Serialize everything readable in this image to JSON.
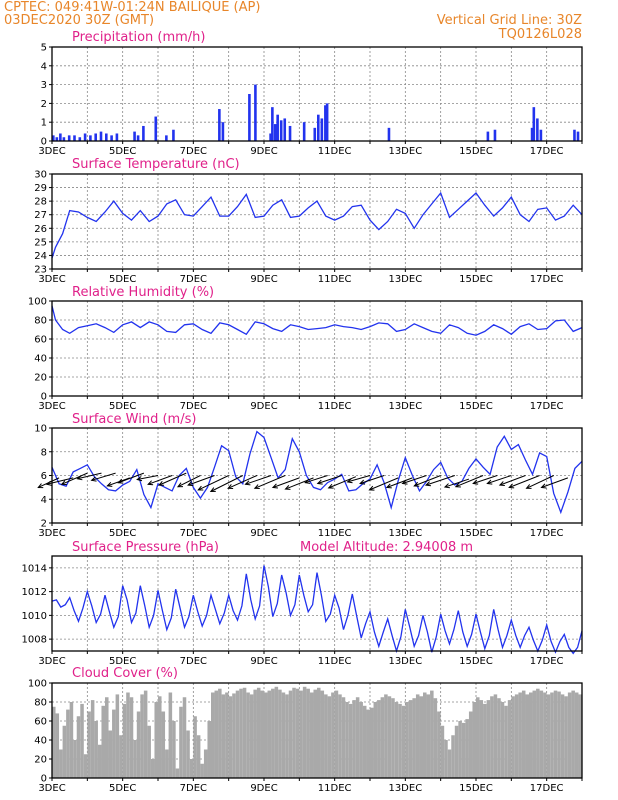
{
  "header": {
    "station": "CPTEC:   049:41W-01:24N   BAILIQUE (AP)",
    "date": "03DEC2020 30Z (GMT)",
    "grid_note": "Vertical Grid Line: 30Z",
    "run_id": "TQ0126L028"
  },
  "colors": {
    "header": "#e8862a",
    "title": "#e0218a",
    "series": "#2233ee",
    "cloud": "#a9a9a9"
  },
  "xaxis": {
    "start_day": 3,
    "end_day": 18,
    "labels": [
      "3DEC",
      "5DEC",
      "7DEC",
      "9DEC",
      "11DEC",
      "13DEC",
      "15DEC",
      "17DEC"
    ],
    "label_days": [
      3,
      5,
      7,
      9,
      11,
      13,
      15,
      17
    ]
  },
  "chart_data": [
    {
      "id": "precip",
      "type": "bar",
      "title": "Precipitation (mm/h)",
      "ylim": [
        0,
        5
      ],
      "yticks": [
        0,
        1,
        2,
        3,
        4,
        5
      ],
      "x_days": [
        3.0,
        3.1,
        3.2,
        3.3,
        3.45,
        3.6,
        3.75,
        3.9,
        4.05,
        4.2,
        4.35,
        4.5,
        4.65,
        4.8,
        5.3,
        5.4,
        5.55,
        5.9,
        6.2,
        6.4,
        7.7,
        7.8,
        8.55,
        8.72,
        9.15,
        9.2,
        9.28,
        9.35,
        9.45,
        9.55,
        9.7,
        10.1,
        10.4,
        10.5,
        10.6,
        10.7,
        10.75,
        12.5,
        15.3,
        15.5,
        16.55,
        16.6,
        16.7,
        16.8,
        17.75,
        17.85
      ],
      "values": [
        0.3,
        0.2,
        0.4,
        0.2,
        0.3,
        0.3,
        0.2,
        0.4,
        0.3,
        0.4,
        0.5,
        0.4,
        0.3,
        0.4,
        0.5,
        0.3,
        0.8,
        1.3,
        0.3,
        0.6,
        1.7,
        1.0,
        2.5,
        3.0,
        0.4,
        1.8,
        0.9,
        1.4,
        1.1,
        1.2,
        0.8,
        1.0,
        0.7,
        1.4,
        1.2,
        1.9,
        2.0,
        0.7,
        0.5,
        0.6,
        0.7,
        1.8,
        1.2,
        0.6,
        0.6,
        0.5
      ]
    },
    {
      "id": "temp",
      "type": "line",
      "title": "Surface Temperature (nC)",
      "ylim": [
        23,
        30
      ],
      "yticks": [
        23,
        24,
        25,
        26,
        27,
        28,
        29,
        30
      ],
      "x_days": [
        3.0,
        3.1,
        3.3,
        3.5,
        3.75,
        4.0,
        4.25,
        4.5,
        4.75,
        5.0,
        5.25,
        5.5,
        5.75,
        6.0,
        6.25,
        6.5,
        6.75,
        7.0,
        7.25,
        7.5,
        7.75,
        8.0,
        8.25,
        8.5,
        8.75,
        9.0,
        9.25,
        9.5,
        9.75,
        10.0,
        10.25,
        10.5,
        10.75,
        11.0,
        11.25,
        11.5,
        11.75,
        12.0,
        12.25,
        12.5,
        12.75,
        13.0,
        13.25,
        13.5,
        13.75,
        14.0,
        14.25,
        14.5,
        14.75,
        15.0,
        15.25,
        15.5,
        15.75,
        16.0,
        16.25,
        16.5,
        16.75,
        17.0,
        17.25,
        17.5,
        17.75,
        18.0
      ],
      "values": [
        23.8,
        24.6,
        25.6,
        27.3,
        27.2,
        26.8,
        26.5,
        27.2,
        28.0,
        27.1,
        26.6,
        27.3,
        26.5,
        26.9,
        27.8,
        28.1,
        27.0,
        26.9,
        27.6,
        28.3,
        26.9,
        26.9,
        27.6,
        28.5,
        26.8,
        26.9,
        27.7,
        28.1,
        26.8,
        26.9,
        27.5,
        28.0,
        26.9,
        26.6,
        26.9,
        27.6,
        27.7,
        26.6,
        25.9,
        26.5,
        27.4,
        27.1,
        26.0,
        27.0,
        27.8,
        28.6,
        26.8,
        27.4,
        28.0,
        28.6,
        27.7,
        26.9,
        27.5,
        28.3,
        27.0,
        26.5,
        27.4,
        27.5,
        26.6,
        26.9,
        27.7,
        27.0
      ]
    },
    {
      "id": "rh",
      "type": "line",
      "title": "Relative Humidity (%)",
      "ylim": [
        0,
        100
      ],
      "yticks": [
        0,
        20,
        40,
        60,
        80,
        100
      ],
      "x_days": [
        3.0,
        3.1,
        3.3,
        3.5,
        3.75,
        4.0,
        4.25,
        4.5,
        4.75,
        5.0,
        5.25,
        5.5,
        5.75,
        6.0,
        6.25,
        6.5,
        6.75,
        7.0,
        7.25,
        7.5,
        7.75,
        8.0,
        8.25,
        8.5,
        8.75,
        9.0,
        9.25,
        9.5,
        9.75,
        10.0,
        10.25,
        10.5,
        10.75,
        11.0,
        11.25,
        11.5,
        11.75,
        12.0,
        12.25,
        12.5,
        12.75,
        13.0,
        13.25,
        13.5,
        13.75,
        14.0,
        14.25,
        14.5,
        14.75,
        15.0,
        15.25,
        15.5,
        15.75,
        16.0,
        16.25,
        16.5,
        16.75,
        17.0,
        17.25,
        17.5,
        17.75,
        18.0
      ],
      "values": [
        95,
        80,
        70,
        66,
        72,
        74,
        76,
        72,
        67,
        75,
        78,
        72,
        78,
        75,
        68,
        67,
        75,
        76,
        70,
        66,
        77,
        75,
        70,
        65,
        78,
        76,
        71,
        68,
        75,
        73,
        70,
        71,
        72,
        75,
        73,
        72,
        70,
        73,
        77,
        76,
        68,
        70,
        76,
        72,
        68,
        66,
        75,
        72,
        66,
        64,
        68,
        75,
        71,
        65,
        73,
        76,
        70,
        71,
        79,
        80,
        68,
        72
      ]
    },
    {
      "id": "wind",
      "type": "line",
      "title": "Surface Wind (m/s)",
      "ylim": [
        2,
        10
      ],
      "yticks": [
        2,
        4,
        6,
        8,
        10
      ],
      "x_days": [
        3.0,
        3.2,
        3.4,
        3.6,
        3.8,
        4.0,
        4.2,
        4.4,
        4.6,
        4.8,
        5.0,
        5.2,
        5.4,
        5.6,
        5.8,
        6.0,
        6.2,
        6.4,
        6.6,
        6.8,
        7.0,
        7.2,
        7.4,
        7.6,
        7.8,
        8.0,
        8.2,
        8.4,
        8.6,
        8.8,
        9.0,
        9.2,
        9.4,
        9.6,
        9.8,
        10.0,
        10.2,
        10.4,
        10.6,
        10.8,
        11.0,
        11.2,
        11.4,
        11.6,
        11.8,
        12.0,
        12.2,
        12.4,
        12.6,
        12.8,
        13.0,
        13.2,
        13.4,
        13.6,
        13.8,
        14.0,
        14.2,
        14.4,
        14.6,
        14.8,
        15.0,
        15.2,
        15.4,
        15.6,
        15.8,
        16.0,
        16.2,
        16.4,
        16.6,
        16.8,
        17.0,
        17.2,
        17.4,
        17.6,
        17.8,
        18.0
      ],
      "values": [
        6.7,
        5.3,
        5.1,
        6.3,
        6.6,
        6.9,
        5.9,
        5.3,
        4.8,
        4.7,
        5.2,
        5.5,
        6.5,
        4.4,
        3.3,
        5.3,
        5.0,
        4.7,
        6.0,
        6.6,
        5.0,
        4.1,
        5.0,
        6.7,
        8.5,
        8.1,
        5.9,
        5.3,
        7.8,
        9.7,
        9.2,
        7.5,
        5.8,
        6.5,
        9.1,
        8.0,
        6.0,
        5.0,
        4.8,
        5.4,
        5.7,
        6.1,
        4.7,
        4.8,
        5.3,
        5.7,
        6.9,
        5.4,
        3.3,
        5.6,
        7.5,
        6.0,
        4.7,
        5.5,
        6.5,
        7.1,
        5.8,
        5.2,
        5.5,
        6.6,
        7.4,
        6.7,
        6.1,
        8.4,
        9.3,
        8.2,
        8.6,
        7.3,
        6.1,
        7.9,
        7.6,
        4.5,
        2.9,
        4.6,
        6.6,
        7.2
      ],
      "arrows_x_days": [
        3.2,
        3.6,
        4.0,
        4.4,
        4.8,
        5.2,
        5.6,
        6.0,
        6.4,
        6.8,
        7.2,
        7.6,
        8.0,
        8.4,
        8.8,
        9.2,
        9.6,
        10.0,
        10.4,
        10.8,
        11.2,
        11.6,
        12.0,
        12.4,
        12.8,
        13.2,
        13.6,
        14.0,
        14.4,
        14.8,
        15.2,
        15.6,
        16.0,
        16.4,
        16.8,
        17.2,
        17.6
      ],
      "arrows_y": [
        5.8,
        5.8,
        6.2,
        6.2,
        6.2,
        5.8,
        6.2,
        6.0,
        6.0,
        6.2,
        6.0,
        6.0,
        6.0,
        6.0,
        6.0,
        6.0,
        6.0,
        5.8,
        5.8,
        6.0,
        6.0,
        5.9,
        6.0,
        6.0,
        5.8,
        5.8,
        6.0,
        6.0,
        6.0,
        5.7,
        6.0,
        6.0,
        6.0,
        6.0,
        6.0,
        6.0,
        5.8
      ],
      "arrows_u": [
        -2.6,
        -3.3,
        -3.2,
        -3.0,
        -3.0,
        -2.8,
        -3.2,
        -2.6,
        -3.0,
        -3.4,
        -2.8,
        -3.3,
        -3.8,
        -4.0,
        -3.6,
        -3.2,
        -3.8,
        -3.3,
        -3.5,
        -2.8,
        -3.0,
        -3.4,
        -2.8,
        -3.0,
        -3.6,
        -3.2,
        -3.0,
        -3.3,
        -3.6,
        -3.0,
        -3.4,
        -3.0,
        -3.0,
        -3.2,
        -3.8,
        -3.4,
        -3.3
      ],
      "arrows_v": [
        -1.2,
        -0.8,
        -1.4,
        -0.7,
        -0.9,
        -1.0,
        -1.2,
        -0.5,
        -1.1,
        -1.5,
        -1.4,
        -1.2,
        -1.8,
        -2.0,
        -1.6,
        -1.1,
        -1.6,
        -1.2,
        -1.4,
        -0.9,
        -1.0,
        -1.4,
        -0.8,
        -1.0,
        -1.5,
        -1.2,
        -1.0,
        -1.3,
        -1.2,
        -1.0,
        -1.4,
        -1.0,
        -1.0,
        -1.2,
        -1.5,
        -1.6,
        -1.2
      ]
    },
    {
      "id": "pressure",
      "type": "line",
      "title": "Surface Pressure (hPa)",
      "annotation": "Model Altitude: 2.94008 m",
      "ylim": [
        1007,
        1015
      ],
      "yticks": [
        1008,
        1010,
        1012,
        1014
      ],
      "x_days": [
        3.0,
        3.125,
        3.25,
        3.375,
        3.5,
        3.625,
        3.75,
        3.875,
        4.0,
        4.125,
        4.25,
        4.375,
        4.5,
        4.625,
        4.75,
        4.875,
        5.0,
        5.125,
        5.25,
        5.375,
        5.5,
        5.625,
        5.75,
        5.875,
        6.0,
        6.125,
        6.25,
        6.375,
        6.5,
        6.625,
        6.75,
        6.875,
        7.0,
        7.125,
        7.25,
        7.375,
        7.5,
        7.625,
        7.75,
        7.875,
        8.0,
        8.125,
        8.25,
        8.375,
        8.5,
        8.625,
        8.75,
        8.875,
        9.0,
        9.125,
        9.25,
        9.375,
        9.5,
        9.625,
        9.75,
        9.875,
        10.0,
        10.125,
        10.25,
        10.375,
        10.5,
        10.625,
        10.75,
        10.875,
        11.0,
        11.125,
        11.25,
        11.375,
        11.5,
        11.625,
        11.75,
        11.875,
        12.0,
        12.125,
        12.25,
        12.375,
        12.5,
        12.625,
        12.75,
        12.875,
        13.0,
        13.125,
        13.25,
        13.375,
        13.5,
        13.625,
        13.75,
        13.875,
        14.0,
        14.125,
        14.25,
        14.375,
        14.5,
        14.625,
        14.75,
        14.875,
        15.0,
        15.125,
        15.25,
        15.375,
        15.5,
        15.625,
        15.75,
        15.875,
        16.0,
        16.125,
        16.25,
        16.375,
        16.5,
        16.625,
        16.75,
        16.875,
        17.0,
        17.125,
        17.25,
        17.375,
        17.5,
        17.625,
        17.75,
        17.875,
        18.0
      ],
      "values": [
        1011.2,
        1011.3,
        1010.7,
        1010.9,
        1011.5,
        1010.4,
        1009.5,
        1010.6,
        1012.0,
        1010.8,
        1009.4,
        1010.1,
        1011.7,
        1010.3,
        1009.0,
        1009.9,
        1012.5,
        1011.3,
        1009.4,
        1010.2,
        1012.5,
        1010.8,
        1009.0,
        1010.0,
        1012.1,
        1010.4,
        1008.8,
        1009.8,
        1012.2,
        1010.6,
        1009.0,
        1009.9,
        1011.7,
        1010.3,
        1009.1,
        1010.0,
        1011.7,
        1010.5,
        1009.3,
        1010.2,
        1011.7,
        1010.4,
        1009.6,
        1010.8,
        1013.5,
        1011.3,
        1009.7,
        1010.8,
        1014.2,
        1012.4,
        1009.9,
        1011.0,
        1013.4,
        1011.9,
        1010.0,
        1010.9,
        1013.4,
        1011.7,
        1010.3,
        1010.9,
        1013.6,
        1011.7,
        1009.5,
        1010.1,
        1011.7,
        1010.6,
        1008.8,
        1010.0,
        1011.8,
        1009.9,
        1008.1,
        1009.3,
        1010.3,
        1008.6,
        1007.4,
        1008.6,
        1009.7,
        1008.3,
        1007.0,
        1008.2,
        1010.5,
        1009.0,
        1007.4,
        1008.3,
        1010.0,
        1008.6,
        1006.9,
        1008.2,
        1010.1,
        1008.7,
        1007.6,
        1008.8,
        1010.4,
        1008.6,
        1007.4,
        1008.4,
        1010.1,
        1008.6,
        1007.2,
        1008.3,
        1010.5,
        1008.8,
        1007.3,
        1008.3,
        1009.6,
        1008.3,
        1007.3,
        1008.3,
        1009.0,
        1007.9,
        1007.0,
        1007.9,
        1009.2,
        1007.8,
        1006.9,
        1007.8,
        1008.4,
        1007.3,
        1006.8,
        1007.3,
        1008.7
      ]
    },
    {
      "id": "cloud",
      "type": "bar",
      "title": "Cloud Cover (%)",
      "ylim": [
        0,
        100
      ],
      "yticks": [
        0,
        20,
        40,
        60,
        80,
        100
      ],
      "x_days": [
        3.0,
        3.1,
        3.2,
        3.3,
        3.4,
        3.5,
        3.6,
        3.7,
        3.8,
        3.9,
        4.0,
        4.1,
        4.2,
        4.3,
        4.4,
        4.5,
        4.6,
        4.7,
        4.8,
        4.9,
        5.0,
        5.1,
        5.2,
        5.3,
        5.4,
        5.5,
        5.6,
        5.7,
        5.8,
        5.9,
        6.0,
        6.1,
        6.2,
        6.3,
        6.4,
        6.5,
        6.6,
        6.7,
        6.8,
        6.9,
        7.0,
        7.1,
        7.2,
        7.3,
        7.4,
        7.5,
        7.6,
        7.7,
        7.8,
        7.9,
        8.0,
        8.1,
        8.2,
        8.3,
        8.4,
        8.5,
        8.6,
        8.7,
        8.8,
        8.9,
        9.0,
        9.1,
        9.2,
        9.3,
        9.4,
        9.5,
        9.6,
        9.7,
        9.8,
        9.9,
        10.0,
        10.1,
        10.2,
        10.3,
        10.4,
        10.5,
        10.6,
        10.7,
        10.8,
        10.9,
        11.0,
        11.1,
        11.2,
        11.3,
        11.4,
        11.5,
        11.6,
        11.7,
        11.8,
        11.9,
        12.0,
        12.1,
        12.2,
        12.3,
        12.4,
        12.5,
        12.6,
        12.7,
        12.8,
        12.9,
        13.0,
        13.1,
        13.2,
        13.3,
        13.4,
        13.5,
        13.6,
        13.7,
        13.8,
        13.9,
        14.0,
        14.1,
        14.2,
        14.3,
        14.4,
        14.5,
        14.6,
        14.7,
        14.8,
        14.9,
        15.0,
        15.1,
        15.2,
        15.3,
        15.4,
        15.5,
        15.6,
        15.7,
        15.8,
        15.9,
        16.0,
        16.1,
        16.2,
        16.3,
        16.4,
        16.5,
        16.6,
        16.7,
        16.8,
        16.9,
        17.0,
        17.1,
        17.2,
        17.3,
        17.4,
        17.5,
        17.6,
        17.7,
        17.8,
        17.9
      ],
      "values": [
        75,
        68,
        30,
        55,
        72,
        80,
        40,
        65,
        78,
        25,
        70,
        82,
        60,
        35,
        76,
        85,
        50,
        72,
        88,
        45,
        78,
        90,
        85,
        40,
        70,
        88,
        92,
        55,
        20,
        80,
        86,
        70,
        30,
        90,
        60,
        10,
        75,
        85,
        50,
        20,
        65,
        45,
        15,
        30,
        60,
        90,
        92,
        94,
        88,
        90,
        86,
        89,
        92,
        94,
        95,
        90,
        88,
        93,
        95,
        92,
        90,
        92,
        94,
        96,
        93,
        90,
        88,
        92,
        95,
        94,
        92,
        96,
        94,
        90,
        93,
        95,
        92,
        88,
        86,
        90,
        92,
        88,
        85,
        80,
        78,
        82,
        85,
        80,
        76,
        72,
        74,
        80,
        82,
        85,
        88,
        86,
        84,
        80,
        78,
        76,
        80,
        82,
        84,
        88,
        86,
        90,
        88,
        92,
        84,
        70,
        55,
        40,
        30,
        45,
        55,
        60,
        58,
        62,
        70,
        80,
        85,
        82,
        78,
        82,
        86,
        88,
        84,
        80,
        76,
        82,
        86,
        88,
        90,
        92,
        88,
        90,
        92,
        94,
        92,
        90,
        88,
        90,
        92,
        91,
        88,
        86,
        90,
        92,
        90,
        88
      ]
    }
  ]
}
